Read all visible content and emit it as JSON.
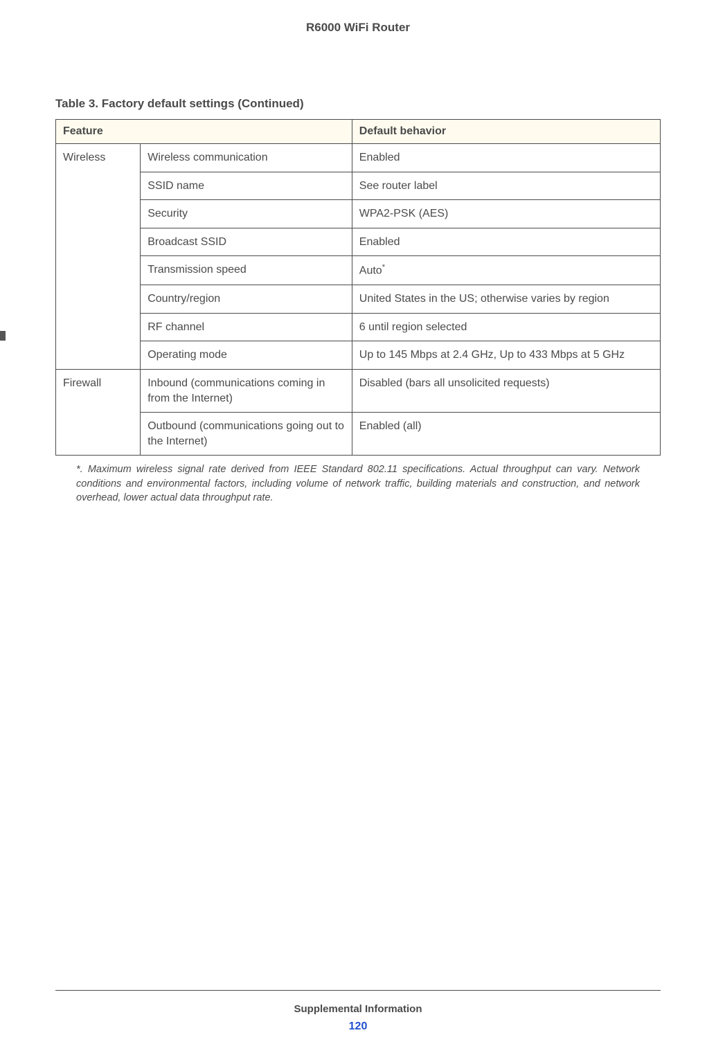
{
  "header": {
    "title": "R6000 WiFi Router"
  },
  "table": {
    "caption": "Table 3.  Factory default settings  (Continued)",
    "columns": {
      "feature": "Feature",
      "behavior": "Default behavior"
    },
    "rows": {
      "wireless_label": "Wireless",
      "wireless_comm_f": "Wireless communication",
      "wireless_comm_v": "Enabled",
      "ssid_name_f": "SSID name",
      "ssid_name_v": "See router label",
      "security_f": "Security",
      "security_v": "WPA2-PSK (AES)",
      "broadcast_f": "Broadcast SSID",
      "broadcast_v": "Enabled",
      "trans_speed_f": "Transmission speed",
      "trans_speed_v": "Auto",
      "trans_speed_sup": "*",
      "country_f": "Country/region",
      "country_v": "United States in the US; otherwise varies by region",
      "rf_channel_f": "RF channel",
      "rf_channel_v": "6 until region selected",
      "op_mode_f": "Operating mode",
      "op_mode_v": "Up to 145 Mbps at 2.4 GHz, Up to 433 Mbps at 5 GHz",
      "firewall_label": "Firewall",
      "inbound_f": "Inbound (communications coming in from the Internet)",
      "inbound_v": "Disabled (bars all unsolicited requests)",
      "outbound_f": "Outbound (communications going out to the Internet)",
      "outbound_v": "Enabled (all)"
    }
  },
  "footnote": "*. Maximum wireless signal rate derived from IEEE Standard 802.11 specifications. Actual throughput can vary. Network conditions and environmental factors, including volume of network traffic, building materials and construction, and network overhead, lower actual data throughput rate.",
  "footer": {
    "section": "Supplemental Information",
    "page": "120"
  }
}
